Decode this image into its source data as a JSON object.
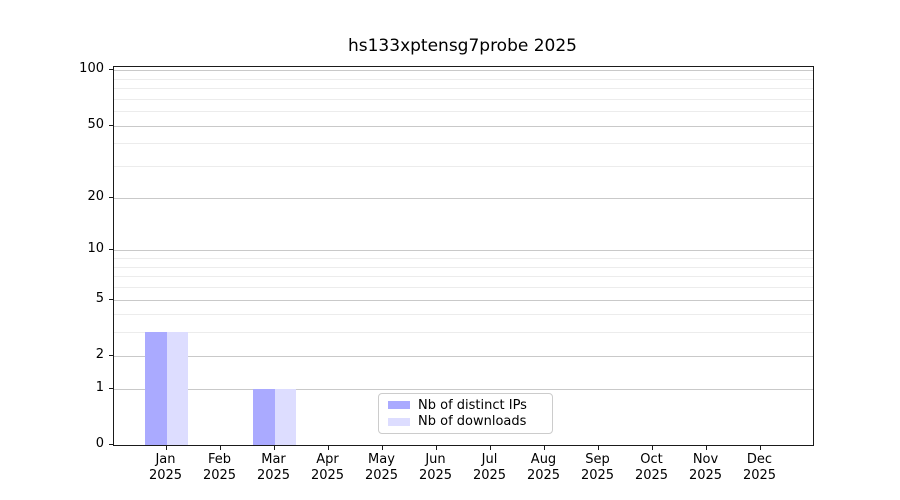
{
  "chart_data": {
    "type": "bar",
    "title": "hs133xptensg7probe 2025",
    "categories": [
      "Jan",
      "Feb",
      "Mar",
      "Apr",
      "May",
      "Jun",
      "Jul",
      "Aug",
      "Sep",
      "Oct",
      "Nov",
      "Dec"
    ],
    "category_year": "2025",
    "series": [
      {
        "name": "Nb of distinct IPs",
        "color": "#aaaaff",
        "values": [
          3,
          0,
          1,
          0,
          0,
          0,
          0,
          0,
          0,
          0,
          0,
          0
        ]
      },
      {
        "name": "Nb of downloads",
        "color": "#ddddff",
        "values": [
          3,
          0,
          1,
          0,
          0,
          0,
          0,
          0,
          0,
          0,
          0,
          0
        ]
      }
    ],
    "y_axis": {
      "scale": "log1p",
      "major_ticks": [
        0,
        1,
        2,
        5,
        10,
        20,
        50,
        100
      ],
      "minor_ticks": [
        3,
        4,
        6,
        7,
        8,
        9,
        30,
        40,
        60,
        70,
        80,
        90
      ],
      "ylim": [
        0,
        104
      ]
    },
    "x_axis": {
      "tick_style": "outward",
      "label_lines": 2
    },
    "grid": {
      "major_color": "#c9c9c9",
      "minor_color": "#ececec",
      "orientation": "horizontal"
    },
    "legend": {
      "position": "bottom-center",
      "border_color": "#cccccc",
      "background": "#ffffff"
    },
    "colors": {
      "frame": "#1a1a1a",
      "background": "#ffffff",
      "text": "#000000"
    }
  }
}
